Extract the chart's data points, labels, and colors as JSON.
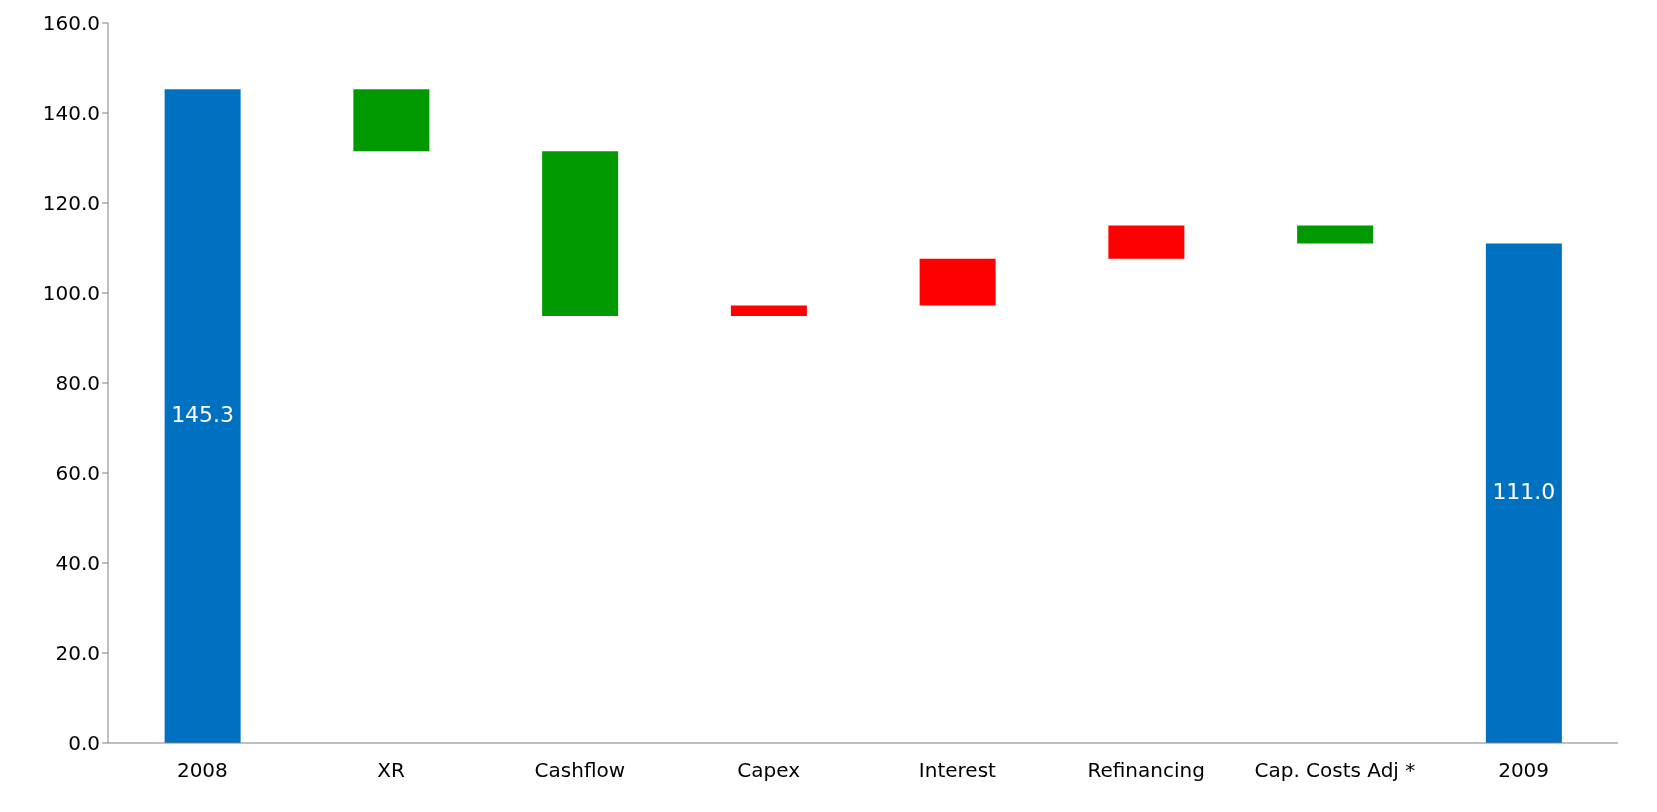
{
  "chart_data": {
    "type": "bar",
    "categories": [
      "2008",
      "XR",
      "Cashflow",
      "Capex",
      "Interest",
      "Refinancing",
      "Cap. Costs Adj *",
      "2009"
    ],
    "values": [
      145.3,
      13.8,
      36.6,
      2.3,
      10.4,
      7.4,
      4.0,
      111.0
    ],
    "base": [
      0,
      131.5,
      94.9,
      94.9,
      97.2,
      107.6,
      111.0,
      0
    ],
    "colors": [
      "#0070c0",
      "#009900",
      "#009900",
      "#ff0000",
      "#ff0000",
      "#ff0000",
      "#009900",
      "#0070c0"
    ],
    "value_labels": [
      "145.3",
      null,
      null,
      null,
      null,
      null,
      null,
      "111.0"
    ],
    "ylim": [
      0,
      160
    ],
    "yticks": [
      {
        "value": 0,
        "label": "0.0"
      },
      {
        "value": 20,
        "label": "20.0"
      },
      {
        "value": 40,
        "label": "40.0"
      },
      {
        "value": 60,
        "label": "60.0"
      },
      {
        "value": 80,
        "label": "80.0"
      },
      {
        "value": 100,
        "label": "100.0"
      },
      {
        "value": 120,
        "label": "120.0"
      },
      {
        "value": 140,
        "label": "140.0"
      },
      {
        "value": 160,
        "label": "160.0"
      }
    ],
    "grid": false,
    "legend": false
  }
}
